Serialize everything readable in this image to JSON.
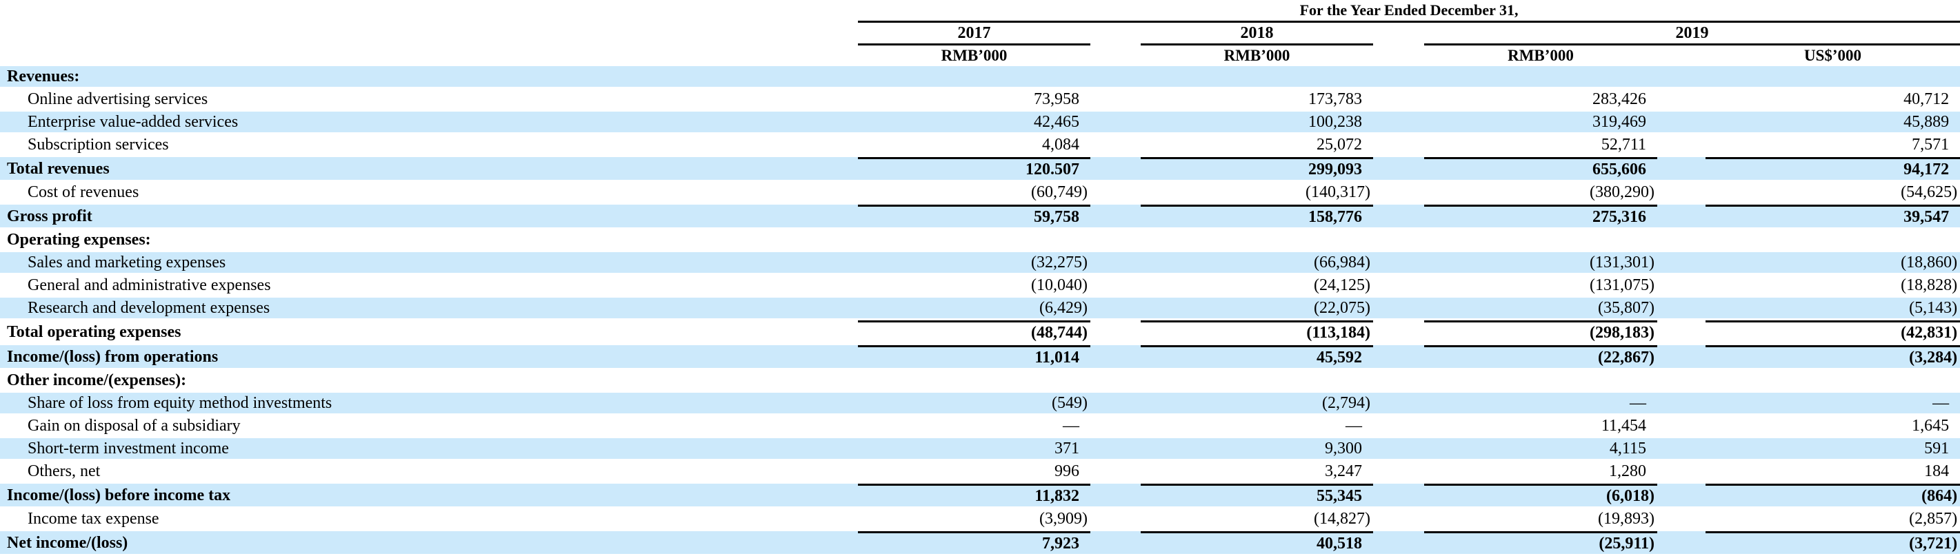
{
  "table": {
    "title": "For the Year Ended December 31,",
    "year_groups": [
      {
        "label": "2017"
      },
      {
        "label": "2018"
      },
      {
        "label": "2019"
      }
    ],
    "unit_headers": [
      "RMB’000",
      "RMB’000",
      "RMB’000",
      "US$’000"
    ],
    "rows": [
      {
        "label": "Revenues:",
        "bold": true,
        "indent": false,
        "shaded": true,
        "topline": false,
        "values": [
          "",
          "",
          "",
          ""
        ]
      },
      {
        "label": "Online advertising services",
        "bold": false,
        "indent": true,
        "shaded": false,
        "topline": false,
        "values": [
          "73,958",
          "173,783",
          "283,426",
          "40,712"
        ]
      },
      {
        "label": "Enterprise value-added services",
        "bold": false,
        "indent": true,
        "shaded": true,
        "topline": false,
        "values": [
          "42,465",
          "100,238",
          "319,469",
          "45,889"
        ]
      },
      {
        "label": "Subscription services",
        "bold": false,
        "indent": true,
        "shaded": false,
        "topline": false,
        "values": [
          "4,084",
          "25,072",
          "52,711",
          "7,571"
        ]
      },
      {
        "label": "Total revenues",
        "bold": true,
        "indent": false,
        "shaded": true,
        "topline": true,
        "values": [
          "120.507",
          "299,093",
          "655,606",
          "94,172"
        ]
      },
      {
        "label": "Cost of revenues",
        "bold": false,
        "indent": true,
        "shaded": false,
        "topline": false,
        "values": [
          "(60,749)",
          "(140,317)",
          "(380,290)",
          "(54,625)"
        ]
      },
      {
        "label": "Gross profit",
        "bold": true,
        "indent": false,
        "shaded": true,
        "topline": true,
        "values": [
          "59,758",
          "158,776",
          "275,316",
          "39,547"
        ]
      },
      {
        "label": "Operating expenses:",
        "bold": true,
        "indent": false,
        "shaded": false,
        "topline": false,
        "values": [
          "",
          "",
          "",
          ""
        ]
      },
      {
        "label": "Sales and marketing expenses",
        "bold": false,
        "indent": true,
        "shaded": true,
        "topline": false,
        "values": [
          "(32,275)",
          "(66,984)",
          "(131,301)",
          "(18,860)"
        ]
      },
      {
        "label": "General and administrative expenses",
        "bold": false,
        "indent": true,
        "shaded": false,
        "topline": false,
        "values": [
          "(10,040)",
          "(24,125)",
          "(131,075)",
          "(18,828)"
        ]
      },
      {
        "label": "Research and development expenses",
        "bold": false,
        "indent": true,
        "shaded": true,
        "topline": false,
        "values": [
          "(6,429)",
          "(22,075)",
          "(35,807)",
          "(5,143)"
        ]
      },
      {
        "label": "Total operating expenses",
        "bold": true,
        "indent": false,
        "shaded": false,
        "topline": true,
        "values": [
          "(48,744)",
          "(113,184)",
          "(298,183)",
          "(42,831)"
        ]
      },
      {
        "label": "Income/(loss) from operations",
        "bold": true,
        "indent": false,
        "shaded": true,
        "topline": true,
        "values": [
          "11,014",
          "45,592",
          "(22,867)",
          "(3,284)"
        ]
      },
      {
        "label": "Other income/(expenses):",
        "bold": true,
        "indent": false,
        "shaded": false,
        "topline": false,
        "values": [
          "",
          "",
          "",
          ""
        ]
      },
      {
        "label": "Share of loss from equity method investments",
        "bold": false,
        "indent": true,
        "shaded": true,
        "topline": false,
        "values": [
          "(549)",
          "(2,794)",
          "—",
          "—"
        ]
      },
      {
        "label": "Gain on disposal of a subsidiary",
        "bold": false,
        "indent": true,
        "shaded": false,
        "topline": false,
        "values": [
          "—",
          "—",
          "11,454",
          "1,645"
        ]
      },
      {
        "label": "Short-term investment income",
        "bold": false,
        "indent": true,
        "shaded": true,
        "topline": false,
        "values": [
          "371",
          "9,300",
          "4,115",
          "591"
        ]
      },
      {
        "label": "Others, net",
        "bold": false,
        "indent": true,
        "shaded": false,
        "topline": false,
        "values": [
          "996",
          "3,247",
          "1,280",
          "184"
        ]
      },
      {
        "label": "Income/(loss) before income tax",
        "bold": true,
        "indent": false,
        "shaded": true,
        "topline": true,
        "values": [
          "11,832",
          "55,345",
          "(6,018)",
          "(864)"
        ]
      },
      {
        "label": "Income tax expense",
        "bold": false,
        "indent": true,
        "shaded": false,
        "topline": false,
        "values": [
          "(3,909)",
          "(14,827)",
          "(19,893)",
          "(2,857)"
        ]
      },
      {
        "label": "Net income/(loss)",
        "bold": true,
        "indent": false,
        "shaded": true,
        "topline": true,
        "values": [
          "7,923",
          "40,518",
          "(25,911)",
          "(3,721)"
        ]
      }
    ]
  },
  "colors": {
    "row_highlight": "#cce9fb",
    "rule": "#000000",
    "text": "#000000"
  }
}
